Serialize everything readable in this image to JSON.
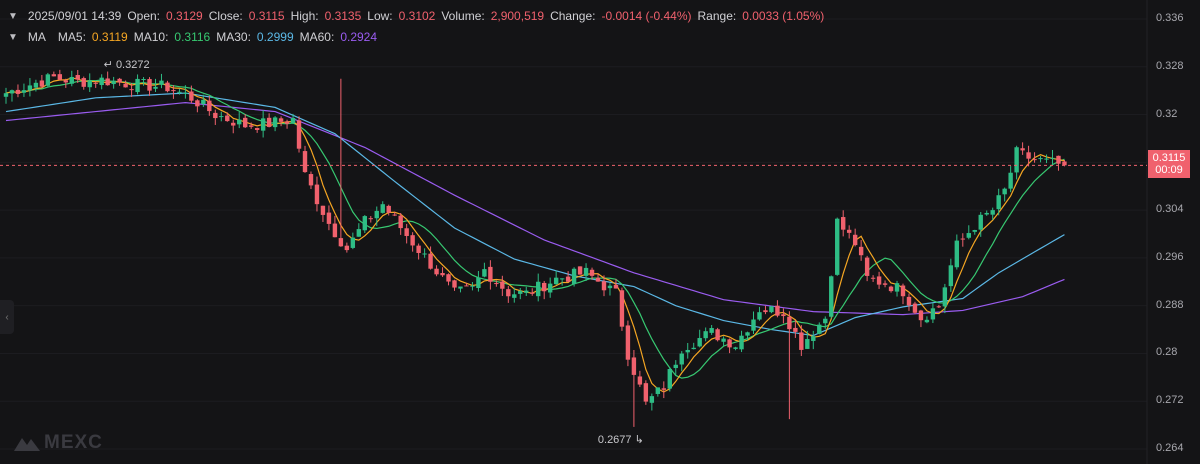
{
  "header": {
    "datetime": "2025/09/01 14:39",
    "open_label": "Open:",
    "open": "0.3129",
    "close_label": "Close:",
    "close": "0.3115",
    "high_label": "High:",
    "high": "0.3135",
    "low_label": "Low:",
    "low": "0.3102",
    "volume_label": "Volume:",
    "volume": "2,900,519",
    "change_label": "Change:",
    "change": "-0.0014 (-0.44%)",
    "range_label": "Range:",
    "range": "0.0033 (1.05%)"
  },
  "ma_legend": {
    "title": "MA",
    "items": [
      {
        "label": "MA5:",
        "value": "0.3119",
        "color": "#f5a623"
      },
      {
        "label": "MA10:",
        "value": "0.3116",
        "color": "#37c871"
      },
      {
        "label": "MA30:",
        "value": "0.2999",
        "color": "#5bb8e6"
      },
      {
        "label": "MA60:",
        "value": "0.2924",
        "color": "#9a5cf0"
      }
    ]
  },
  "price_box": {
    "price": "0.3115",
    "countdown": "00:09"
  },
  "brand": "MEXC",
  "colors": {
    "up": "#2ebd85",
    "down": "#f0616d",
    "background": "#141416"
  },
  "chart_data": {
    "type": "candlestick",
    "interval_note": "",
    "y_ticks": [
      "0.336",
      "0.328",
      "0.32",
      "0.312",
      "0.304",
      "0.296",
      "0.288",
      "0.28",
      "0.272",
      "0.264"
    ],
    "ylim": [
      0.264,
      0.336
    ],
    "current_price": 0.3115,
    "annotations": [
      {
        "label": "0.3272",
        "value": 0.3272,
        "index": 17
      },
      {
        "label": "0.2677",
        "value": 0.2677,
        "index": 105
      }
    ],
    "close_path": [
      [
        0,
        0.3236
      ],
      [
        4,
        0.325
      ],
      [
        8,
        0.3262
      ],
      [
        12,
        0.3255
      ],
      [
        16,
        0.3258
      ],
      [
        22,
        0.325
      ],
      [
        27,
        0.3246
      ],
      [
        31,
        0.3228
      ],
      [
        35,
        0.32
      ],
      [
        40,
        0.3182
      ],
      [
        44,
        0.3185
      ],
      [
        48,
        0.3192
      ],
      [
        50,
        0.3098
      ],
      [
        54,
        0.3018
      ],
      [
        57,
        0.2975
      ],
      [
        60,
        0.302
      ],
      [
        63,
        0.305
      ],
      [
        67,
        0.2998
      ],
      [
        71,
        0.295
      ],
      [
        75,
        0.29
      ],
      [
        78,
        0.2908
      ],
      [
        80,
        0.294
      ],
      [
        84,
        0.2902
      ],
      [
        87,
        0.29
      ],
      [
        92,
        0.2925
      ],
      [
        97,
        0.2935
      ],
      [
        102,
        0.29
      ],
      [
        104,
        0.28
      ],
      [
        107,
        0.2715
      ],
      [
        110,
        0.2745
      ],
      [
        113,
        0.281
      ],
      [
        118,
        0.2835
      ],
      [
        122,
        0.2815
      ],
      [
        126,
        0.2875
      ],
      [
        130,
        0.287
      ],
      [
        133,
        0.2815
      ],
      [
        137,
        0.286
      ],
      [
        139,
        0.302
      ],
      [
        142,
        0.2985
      ],
      [
        144,
        0.2925
      ],
      [
        147,
        0.2918
      ],
      [
        150,
        0.2905
      ],
      [
        153,
        0.286
      ],
      [
        156,
        0.288
      ],
      [
        159,
        0.298
      ],
      [
        162,
        0.3015
      ],
      [
        165,
        0.304
      ],
      [
        167,
        0.3072
      ],
      [
        169,
        0.3135
      ],
      [
        171,
        0.3128
      ],
      [
        174,
        0.312
      ],
      [
        177,
        0.3115
      ]
    ],
    "ma60_path": [
      [
        0,
        0.319
      ],
      [
        15,
        0.3205
      ],
      [
        30,
        0.322
      ],
      [
        45,
        0.3205
      ],
      [
        60,
        0.3145
      ],
      [
        75,
        0.3065
      ],
      [
        90,
        0.299
      ],
      [
        105,
        0.2935
      ],
      [
        120,
        0.289
      ],
      [
        135,
        0.287
      ],
      [
        150,
        0.2865
      ],
      [
        160,
        0.2872
      ],
      [
        170,
        0.2895
      ],
      [
        177,
        0.2924
      ]
    ],
    "ma30_path": [
      [
        0,
        0.3205
      ],
      [
        15,
        0.3228
      ],
      [
        30,
        0.3236
      ],
      [
        45,
        0.3212
      ],
      [
        55,
        0.3168
      ],
      [
        65,
        0.3088
      ],
      [
        75,
        0.301
      ],
      [
        85,
        0.2958
      ],
      [
        95,
        0.293
      ],
      [
        105,
        0.2912
      ],
      [
        112,
        0.288
      ],
      [
        120,
        0.2855
      ],
      [
        128,
        0.284
      ],
      [
        135,
        0.283
      ],
      [
        142,
        0.286
      ],
      [
        150,
        0.2878
      ],
      [
        160,
        0.2892
      ],
      [
        166,
        0.2935
      ],
      [
        172,
        0.297
      ],
      [
        177,
        0.2999
      ]
    ],
    "candle_count": 178
  }
}
